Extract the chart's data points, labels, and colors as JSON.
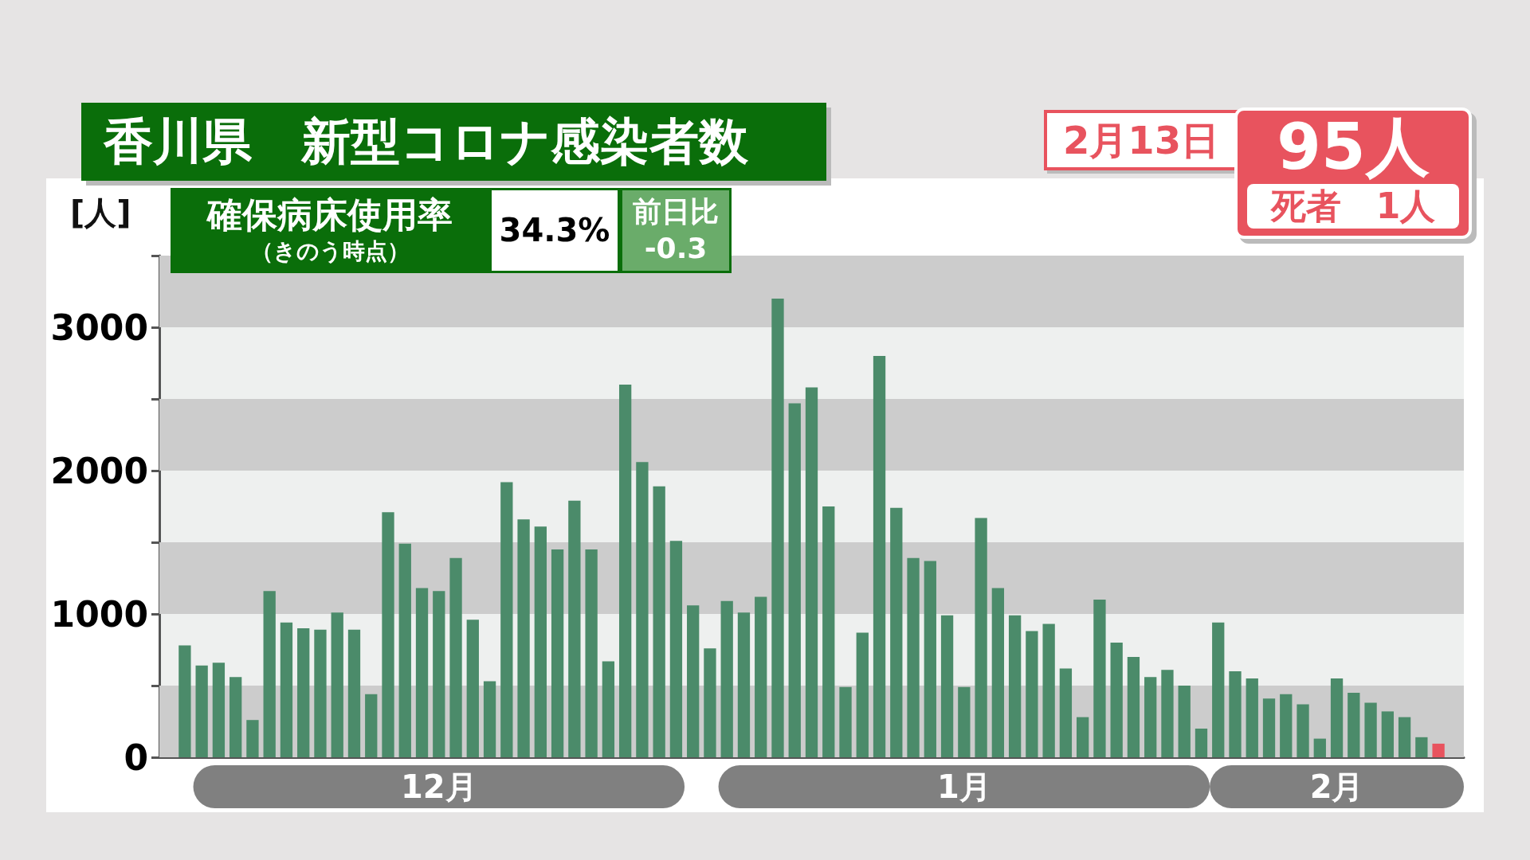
{
  "chart_data": {
    "type": "bar",
    "title": "香川県　新型コロナ感染者数",
    "ylabel": "[人]",
    "categories": [
      null,
      null,
      null,
      null,
      null,
      null,
      null,
      null,
      null,
      null,
      null,
      null,
      null,
      null,
      null,
      "12月",
      null,
      null,
      null,
      null,
      null,
      null,
      null,
      null,
      null,
      null,
      null,
      null,
      null,
      null,
      null,
      null,
      null,
      null,
      null,
      null,
      null,
      null,
      null,
      null,
      null,
      null,
      null,
      null,
      null,
      null,
      "1月",
      null,
      null,
      null,
      null,
      null,
      null,
      null,
      null,
      null,
      null,
      null,
      null,
      null,
      null,
      null,
      null,
      null,
      null,
      null,
      null,
      null,
      "2月",
      null,
      null,
      null,
      null,
      null,
      null
    ],
    "values": [
      780,
      640,
      660,
      560,
      260,
      1160,
      940,
      900,
      890,
      1010,
      890,
      440,
      1710,
      1490,
      1180,
      1160,
      1390,
      960,
      530,
      1920,
      1660,
      1610,
      1450,
      1790,
      1450,
      670,
      2600,
      2060,
      1890,
      1510,
      1060,
      760,
      1090,
      1010,
      1120,
      3200,
      2470,
      2580,
      1750,
      490,
      870,
      2800,
      1740,
      1390,
      1370,
      990,
      490,
      1670,
      1180,
      990,
      880,
      930,
      620,
      280,
      1100,
      800,
      700,
      560,
      610,
      500,
      200,
      940,
      600,
      550,
      410,
      440,
      370,
      130,
      550,
      450,
      380,
      320,
      280,
      140,
      95
    ],
    "colors": [
      "#4b8b6a",
      "#4b8b6a",
      "#4b8b6a",
      "#4b8b6a",
      "#4b8b6a",
      "#4b8b6a",
      "#4b8b6a",
      "#4b8b6a",
      "#4b8b6a",
      "#4b8b6a",
      "#4b8b6a",
      "#4b8b6a",
      "#4b8b6a",
      "#4b8b6a",
      "#4b8b6a",
      "#4b8b6a",
      "#4b8b6a",
      "#4b8b6a",
      "#4b8b6a",
      "#4b8b6a",
      "#4b8b6a",
      "#4b8b6a",
      "#4b8b6a",
      "#4b8b6a",
      "#4b8b6a",
      "#4b8b6a",
      "#4b8b6a",
      "#4b8b6a",
      "#4b8b6a",
      "#4b8b6a",
      "#4b8b6a",
      "#4b8b6a",
      "#4b8b6a",
      "#4b8b6a",
      "#4b8b6a",
      "#4b8b6a",
      "#4b8b6a",
      "#4b8b6a",
      "#4b8b6a",
      "#4b8b6a",
      "#4b8b6a",
      "#4b8b6a",
      "#4b8b6a",
      "#4b8b6a",
      "#4b8b6a",
      "#4b8b6a",
      "#4b8b6a",
      "#4b8b6a",
      "#4b8b6a",
      "#4b8b6a",
      "#4b8b6a",
      "#4b8b6a",
      "#4b8b6a",
      "#4b8b6a",
      "#4b8b6a",
      "#4b8b6a",
      "#4b8b6a",
      "#4b8b6a",
      "#4b8b6a",
      "#4b8b6a",
      "#4b8b6a",
      "#4b8b6a",
      "#4b8b6a",
      "#4b8b6a",
      "#4b8b6a",
      "#4b8b6a",
      "#4b8b6a",
      "#4b8b6a",
      "#4b8b6a",
      "#4b8b6a",
      "#4b8b6a",
      "#4b8b6a",
      "#4b8b6a",
      "#4b8b6a",
      "#e8535e"
    ],
    "ylim": [
      0,
      3500
    ],
    "yticks": [
      0,
      {
        "value": 500,
        "label": null
      },
      1000,
      {
        "value": 1500,
        "label": null
      },
      2000,
      {
        "value": 2500,
        "label": null
      },
      3000,
      {
        "value": 3500,
        "label": null
      }
    ],
    "bands": [
      {
        "axis": "y",
        "from": 0,
        "to": 500,
        "color": "#cccccc"
      },
      {
        "axis": "y",
        "from": 1000,
        "to": 1500,
        "color": "#cccccc"
      },
      {
        "axis": "y",
        "from": 2000,
        "to": 2500,
        "color": "#cccccc"
      },
      {
        "axis": "y",
        "from": 3000,
        "to": 3500,
        "color": "#cccccc"
      }
    ],
    "annotations": [
      "確保病床使用率",
      "（きのう時点）",
      "34.3%",
      "前日比",
      "-0.3",
      "2月13日",
      "95人",
      "死者　1人"
    ]
  }
}
